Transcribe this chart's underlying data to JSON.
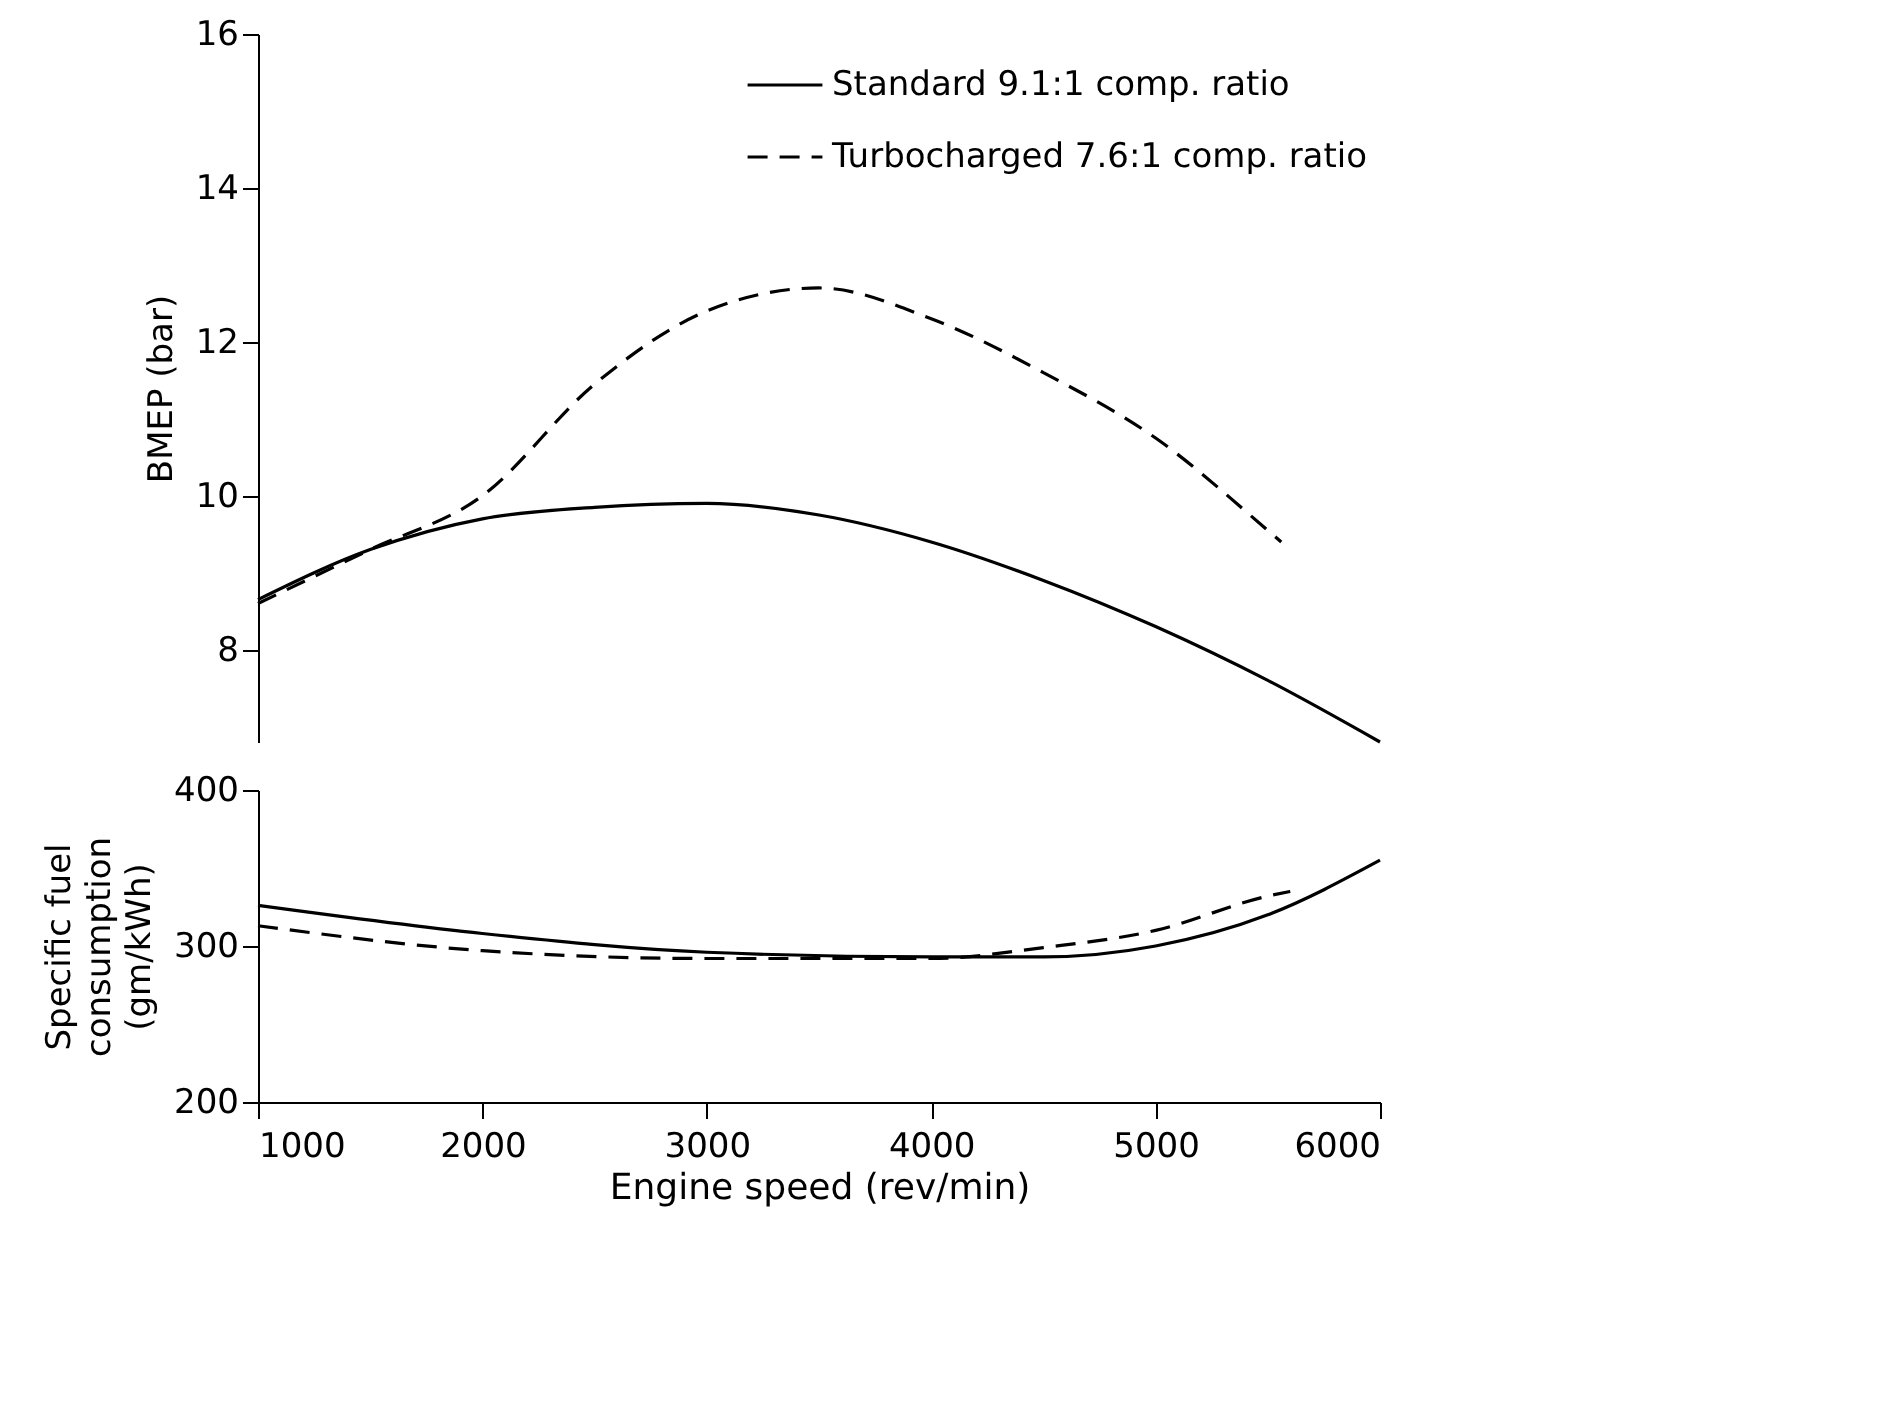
{
  "chart_data": [
    {
      "type": "line",
      "ylabel": "BMEP (bar)",
      "xlim": [
        1000,
        6000
      ],
      "ylim": [
        6.8,
        16
      ],
      "yticks": [
        8,
        10,
        12,
        14,
        16
      ],
      "tick_labels": "y",
      "grid": false,
      "legend": "top right",
      "series": [
        {
          "name": "Standard 9.1:1 comp. ratio",
          "color": "#000000",
          "line_style": "solid",
          "x": [
            1000,
            1500,
            2000,
            2500,
            3000,
            3500,
            4000,
            4500,
            5000,
            5500,
            6000
          ],
          "values": [
            8.65,
            9.3,
            9.7,
            9.85,
            9.9,
            9.75,
            9.4,
            8.9,
            8.3,
            7.6,
            6.8
          ]
        },
        {
          "name": "Turbocharged 7.6:1 comp. ratio",
          "color": "#000000",
          "line_style": "dashed",
          "x": [
            1000,
            1500,
            2000,
            2500,
            3000,
            3500,
            4000,
            4500,
            5000,
            5500,
            5560
          ],
          "values": [
            8.6,
            9.3,
            10.0,
            11.45,
            12.4,
            12.7,
            12.3,
            11.6,
            10.75,
            9.55,
            9.4
          ]
        }
      ]
    },
    {
      "type": "line",
      "xlabel": "Engine speed (rev/min)",
      "ylabel": "Specific fuel\nconsumption\n(gm/kWh)",
      "xlim": [
        1000,
        6000
      ],
      "xticks": [
        1000,
        2000,
        3000,
        4000,
        5000,
        6000
      ],
      "ylim": [
        200,
        400
      ],
      "yticks": [
        200,
        300,
        400
      ],
      "grid": false,
      "series": [
        {
          "color": "#000000",
          "line_style": "solid",
          "x": [
            1000,
            2000,
            3000,
            4000,
            4500,
            5000,
            5500,
            6000
          ],
          "values": [
            326,
            308,
            296,
            293,
            293,
            300,
            320,
            355
          ]
        },
        {
          "color": "#000000",
          "line_style": "dashed",
          "x": [
            1000,
            2000,
            3000,
            4000,
            4500,
            5000,
            5500,
            5600
          ],
          "values": [
            313,
            297,
            292,
            292,
            299,
            310,
            332,
            335
          ]
        }
      ]
    }
  ]
}
